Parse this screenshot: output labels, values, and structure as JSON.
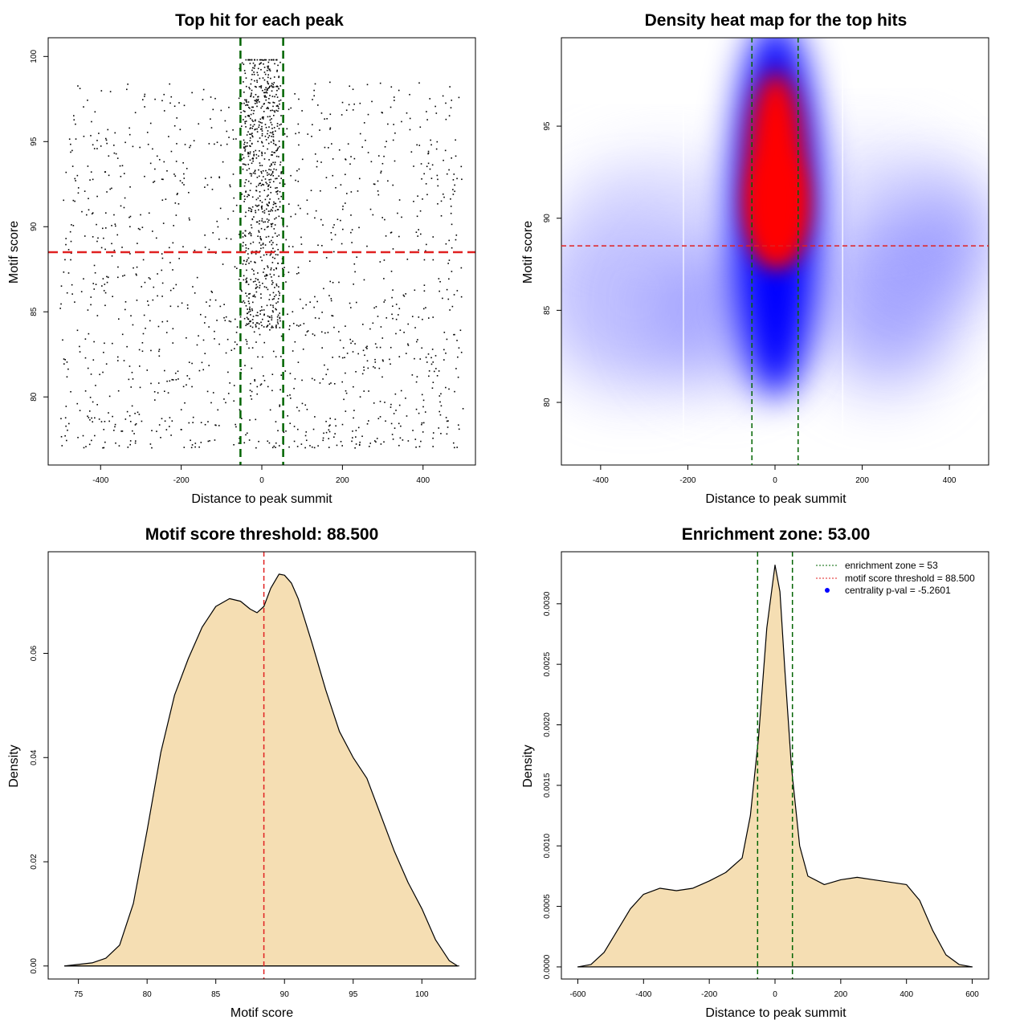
{
  "figure": {
    "background": "#ffffff"
  },
  "colors": {
    "green": "#006400",
    "red": "#e02020",
    "heat_blue": "#0000ff",
    "heat_red": "#ff0000",
    "density_fill": "#f5deb3",
    "point": "#000000"
  },
  "chart_data": [
    {
      "id": "scatter",
      "type": "scatter",
      "title": "Top hit for each peak",
      "xlabel": "Distance to peak summit",
      "ylabel": "Motif score",
      "xlim": [
        -530,
        530
      ],
      "ylim": [
        76.0,
        101.1
      ],
      "xticks": [
        -400,
        -200,
        0,
        200,
        400
      ],
      "yticks": [
        80,
        85,
        90,
        95,
        100
      ],
      "xtick_labels": [
        "-400",
        "-200",
        "0",
        "200",
        "400"
      ],
      "ytick_labels": [
        "80",
        "85",
        "90",
        "95",
        "100"
      ],
      "vlines": [
        -53,
        53
      ],
      "hline": 88.5,
      "n_points": 2000,
      "points_note": "approx. 2000 points; uniform background over x in [-500,500], y in [77,99.8], with dense cluster near x in [-53,53]"
    },
    {
      "id": "heatmap",
      "type": "heatmap",
      "title": "Density heat map for the top hits",
      "xlabel": "Distance to peak summit",
      "ylabel": "Motif score",
      "xlim": [
        -490,
        490
      ],
      "ylim": [
        76.6,
        99.8
      ],
      "xticks": [
        -400,
        -200,
        0,
        200,
        400
      ],
      "yticks": [
        80,
        85,
        90,
        95
      ],
      "xtick_labels": [
        "-400",
        "-200",
        "0",
        "200",
        "400"
      ],
      "ytick_labels": [
        "80",
        "85",
        "90",
        "95"
      ],
      "vlines": [
        -53,
        53
      ],
      "hline": 88.5,
      "white_lines": [
        -210,
        155
      ],
      "hotspot": {
        "x": 0,
        "y": 91,
        "note": "red core spanning y ~86-97"
      }
    },
    {
      "id": "score_density",
      "type": "area",
      "title": "Motif score threshold: 88.500",
      "xlabel": "Motif score",
      "ylabel": "Density",
      "xlim": [
        72.8,
        103.9
      ],
      "ylim": [
        -0.0025,
        0.0795
      ],
      "xticks": [
        75,
        80,
        85,
        90,
        95,
        100
      ],
      "yticks": [
        0.0,
        0.02,
        0.04,
        0.06
      ],
      "xtick_labels": [
        "75",
        "80",
        "85",
        "90",
        "95",
        "100"
      ],
      "ytick_labels": [
        "0.00",
        "0.02",
        "0.04",
        "0.06"
      ],
      "vline": 88.5,
      "x": [
        74,
        76,
        77,
        78,
        79,
        80,
        81,
        82,
        83,
        84,
        85,
        86,
        86.8,
        87.5,
        88.0,
        88.5,
        89.0,
        89.6,
        90.0,
        90.5,
        91,
        92,
        93,
        94,
        95,
        96,
        97,
        98,
        99,
        100,
        101,
        102,
        102.6
      ],
      "y": [
        0.0,
        0.0006,
        0.0015,
        0.004,
        0.012,
        0.026,
        0.041,
        0.052,
        0.059,
        0.065,
        0.069,
        0.0705,
        0.07,
        0.0685,
        0.0678,
        0.069,
        0.0725,
        0.0752,
        0.075,
        0.0735,
        0.0705,
        0.062,
        0.053,
        0.045,
        0.04,
        0.036,
        0.029,
        0.022,
        0.016,
        0.011,
        0.005,
        0.001,
        0.0
      ]
    },
    {
      "id": "distance_density",
      "type": "area",
      "title": "Enrichment zone: 53.00",
      "xlabel": "Distance to peak summit",
      "ylabel": "Density",
      "xlim": [
        -650,
        650
      ],
      "ylim": [
        -0.0001,
        0.00343
      ],
      "xticks": [
        -600,
        -400,
        -200,
        0,
        200,
        400,
        600
      ],
      "yticks": [
        0.0,
        0.0005,
        0.001,
        0.0015,
        0.002,
        0.0025,
        0.003
      ],
      "xtick_labels": [
        "-600",
        "-400",
        "-200",
        "0",
        "200",
        "400",
        "600"
      ],
      "ytick_labels": [
        "0.0000",
        "0.0005",
        "0.0010",
        "0.0015",
        "0.0020",
        "0.0025",
        "0.0030"
      ],
      "vlines": [
        -53,
        53
      ],
      "x": [
        -600,
        -560,
        -520,
        -480,
        -440,
        -400,
        -350,
        -300,
        -250,
        -200,
        -150,
        -100,
        -75,
        -50,
        -25,
        0,
        15,
        30,
        50,
        75,
        100,
        150,
        200,
        250,
        300,
        350,
        400,
        440,
        480,
        520,
        560,
        600
      ],
      "y": [
        0.0,
        2e-05,
        0.00012,
        0.0003,
        0.00048,
        0.0006,
        0.00065,
        0.00063,
        0.00065,
        0.00071,
        0.00078,
        0.0009,
        0.00125,
        0.0019,
        0.0028,
        0.00332,
        0.0031,
        0.00245,
        0.00165,
        0.001,
        0.00075,
        0.00068,
        0.00072,
        0.00074,
        0.00072,
        0.0007,
        0.00068,
        0.00055,
        0.0003,
        0.0001,
        2e-05,
        0.0
      ],
      "legend": {
        "position": "top-right",
        "items": [
          {
            "label": "enrichment zone = 53",
            "color": "#006400",
            "style": "dotted-line"
          },
          {
            "label": "motif score threshold = 88.500",
            "color": "#e02020",
            "style": "dotted-line"
          },
          {
            "label": "centrality p-val = -5.2601",
            "color": "#0000ff",
            "style": "point"
          }
        ]
      }
    }
  ]
}
